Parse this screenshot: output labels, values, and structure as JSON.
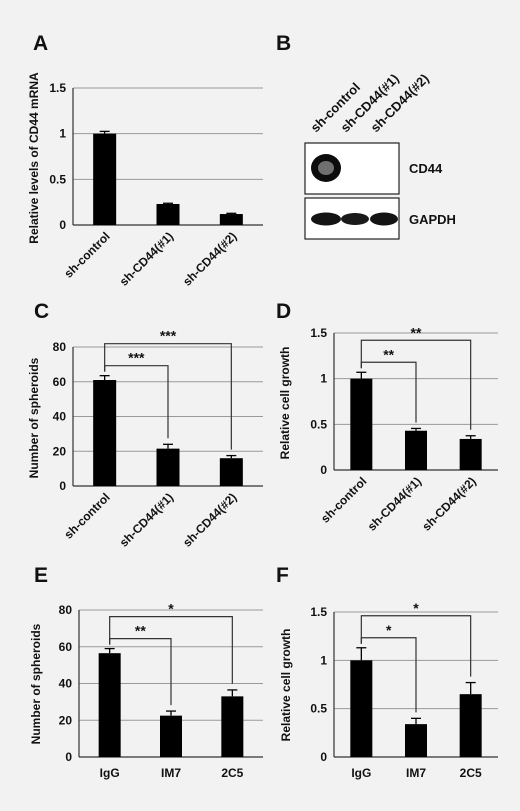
{
  "panels": {
    "a": "A",
    "b": "B",
    "c": "C",
    "d": "D",
    "e": "E",
    "f": "F"
  },
  "blot": {
    "lanes": [
      "sh-control",
      "sh-CD44(#1)",
      "sh-CD44(#2)"
    ],
    "row1": "CD44",
    "row2": "GAPDH"
  },
  "chart_data": [
    {
      "id": "A",
      "type": "bar",
      "categories": [
        "sh-control",
        "sh-CD44(#1)",
        "sh-CD44(#2)"
      ],
      "values": [
        1.0,
        0.23,
        0.12
      ],
      "errors": [
        0.025,
        0.008,
        0.008
      ],
      "ylabel": "Relative levels of CD44 mRNA",
      "ylim": [
        0,
        1.5
      ],
      "yticks": [
        0,
        0.5,
        1,
        1.5
      ],
      "grid": true,
      "sig": []
    },
    {
      "id": "C",
      "type": "bar",
      "categories": [
        "sh-control",
        "sh-CD44(#1)",
        "sh-CD44(#2)"
      ],
      "values": [
        61,
        21.5,
        16
      ],
      "errors": [
        2.5,
        2.5,
        1.5
      ],
      "ylabel": "Number of spheroids",
      "ylim": [
        0,
        80
      ],
      "yticks": [
        0,
        20,
        40,
        60,
        80
      ],
      "grid": true,
      "sig": [
        {
          "from": 0,
          "to": 1,
          "label": "***"
        },
        {
          "from": 0,
          "to": 2,
          "label": "***"
        }
      ]
    },
    {
      "id": "D",
      "type": "bar",
      "categories": [
        "sh-control",
        "sh-CD44(#1)",
        "sh-CD44(#2)"
      ],
      "values": [
        1.0,
        0.43,
        0.34
      ],
      "errors": [
        0.07,
        0.025,
        0.035
      ],
      "ylabel": "Relative cell growth",
      "ylim": [
        0,
        1.5
      ],
      "yticks": [
        0,
        0.5,
        1,
        1.5
      ],
      "grid": true,
      "sig": [
        {
          "from": 0,
          "to": 1,
          "label": "**"
        },
        {
          "from": 0,
          "to": 2,
          "label": "**"
        }
      ]
    },
    {
      "id": "E",
      "type": "bar",
      "categories": [
        "IgG",
        "IM7",
        "2C5"
      ],
      "values": [
        56.5,
        22.5,
        33
      ],
      "errors": [
        2.5,
        2.5,
        3.5
      ],
      "ylabel": "Number of spheroids",
      "ylim": [
        0,
        80
      ],
      "yticks": [
        0,
        20,
        40,
        60,
        80
      ],
      "grid": true,
      "sig": [
        {
          "from": 0,
          "to": 1,
          "label": "**"
        },
        {
          "from": 0,
          "to": 2,
          "label": "*"
        }
      ]
    },
    {
      "id": "F",
      "type": "bar",
      "categories": [
        "IgG",
        "IM7",
        "2C5"
      ],
      "values": [
        1.0,
        0.34,
        0.65
      ],
      "errors": [
        0.13,
        0.06,
        0.12
      ],
      "ylabel": "Relative cell growth",
      "ylim": [
        0,
        1.5
      ],
      "yticks": [
        0,
        0.5,
        1,
        1.5
      ],
      "grid": true,
      "sig": [
        {
          "from": 0,
          "to": 1,
          "label": "*"
        },
        {
          "from": 0,
          "to": 2,
          "label": "*"
        }
      ]
    }
  ]
}
